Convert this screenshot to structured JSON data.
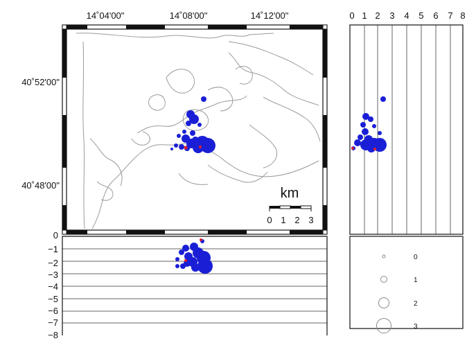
{
  "map": {
    "lon_labels": [
      "14˚04'00\"",
      "14˚08'00\"",
      "14˚12'00\""
    ],
    "lat_labels": [
      "40˚52'00\"",
      "40˚48'00\""
    ],
    "scale_bar": {
      "unit": "km",
      "ticks": [
        "0",
        "1",
        "2",
        "3"
      ]
    }
  },
  "depth_section": {
    "ticks": [
      "0",
      "−1",
      "−2",
      "−3",
      "−4",
      "−5",
      "−6",
      "−7",
      "−8"
    ]
  },
  "lat_section": {
    "ticks": [
      "0",
      "1",
      "2",
      "3",
      "4",
      "5",
      "6",
      "7",
      "8"
    ]
  },
  "legend": {
    "magnitudes": [
      "0",
      "1",
      "2",
      "3"
    ]
  },
  "colors": {
    "event": "#1a1fd6",
    "event_highlight": "#e0202a",
    "coastline": "#9a9a9a"
  }
}
